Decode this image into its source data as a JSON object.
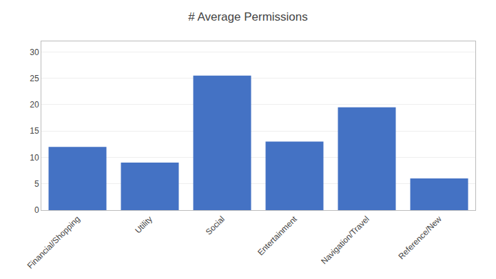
{
  "chart_data": {
    "type": "bar",
    "title": "# Average Permissions",
    "categories": [
      "Financial/Shopping",
      "Utility",
      "Social",
      "Entertainment",
      "Navigation/Travel",
      "Reference/New"
    ],
    "values": [
      12,
      9,
      25.5,
      13,
      19.5,
      6
    ],
    "color": "#4472C4",
    "ylim": [
      0,
      32
    ],
    "yticks": [
      0,
      5,
      10,
      15,
      20,
      25,
      30
    ],
    "grid": true
  }
}
